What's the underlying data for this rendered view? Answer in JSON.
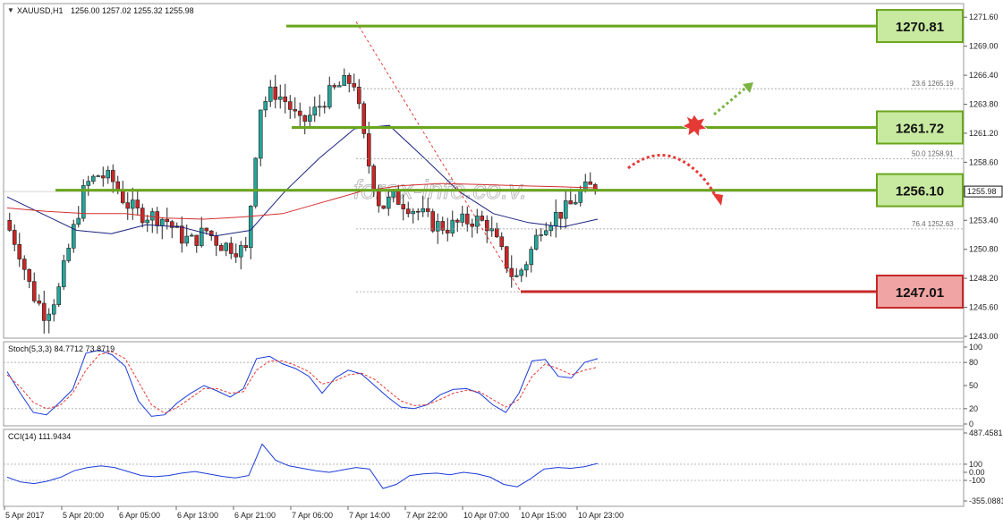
{
  "header": {
    "symbol": "XAUUSD,H1",
    "ohlc": "1256.00 1257.02 1255.32 1255.98"
  },
  "watermark": "forex-info.co.v.",
  "price_axis": {
    "ticks": [
      "1271.60",
      "1269.00",
      "1266.40",
      "1263.80",
      "1261.20",
      "1258.60",
      "1256.00",
      "1253.40",
      "1250.80",
      "1248.20",
      "1245.60",
      "1243.00"
    ],
    "current": "1255.98"
  },
  "time_axis": [
    "5 Apr 2017",
    "5 Apr 20:00",
    "6 Apr 05:00",
    "6 Apr 13:00",
    "6 Apr 21:00",
    "7 Apr 06:00",
    "7 Apr 14:00",
    "7 Apr 22:00",
    "10 Apr 07:00",
    "10 Apr 15:00",
    "10 Apr 23:00"
  ],
  "levels": [
    {
      "label": "1270.81",
      "price": 1270.81,
      "kind": "resistance"
    },
    {
      "label": "1261.72",
      "price": 1261.72,
      "kind": "resistance"
    },
    {
      "label": "1256.10",
      "price": 1256.1,
      "kind": "pivot"
    },
    {
      "label": "1247.01",
      "price": 1247.01,
      "kind": "support"
    }
  ],
  "fib_levels": [
    {
      "label": "23.6  1265.19",
      "price": 1265.19
    },
    {
      "label": "50.0  1258.91",
      "price": 1258.91
    },
    {
      "label": "76.4  1252.63",
      "price": 1252.63
    }
  ],
  "stoch": {
    "label": "Stoch(5,3,3) 84.7712 73.8719",
    "ticks": [
      "100",
      "80",
      "50",
      "20",
      "0"
    ]
  },
  "cci": {
    "label": "CCI(14) 111.9434",
    "ticks": [
      "487.4581",
      "100",
      "0.00",
      "-100",
      "-355.0881"
    ]
  },
  "colors": {
    "bull": "#26a69a",
    "bear": "#c62828",
    "ma_fast": "#1a237e",
    "ma_slow": "#d32f2f",
    "level_green": "#6aa51e",
    "level_red": "#c62828",
    "box_green": "#c8eaa0",
    "box_red": "#f0a4a4"
  },
  "chart_data": {
    "type": "candlestick",
    "symbol": "XAUUSD",
    "timeframe": "H1",
    "ylim": [
      1243.0,
      1272.5
    ],
    "close_path": [
      1253.4,
      1251.0,
      1247.0,
      1245.0,
      1247.0,
      1252.0,
      1256.5,
      1257.5,
      1257.0,
      1255.0,
      1254.0,
      1253.8,
      1253.5,
      1252.0,
      1251.5,
      1252.5,
      1251.3,
      1251.0,
      1250.6,
      1263.5,
      1265.0,
      1264.0,
      1262.0,
      1263.0,
      1264.5,
      1265.5,
      1266.0,
      1259.0,
      1254.5,
      1255.5,
      1254.8,
      1254.0,
      1253.0,
      1252.8,
      1253.2,
      1253.5,
      1253.0,
      1250.5,
      1248.0,
      1250.0,
      1253.0,
      1253.8,
      1254.5,
      1256.0,
      1256.5
    ],
    "ma_fast_path": [
      1255.5,
      1254.0,
      1252.5,
      1252.2,
      1253.0,
      1252.8,
      1252.0,
      1252.5,
      1256.0,
      1259.0,
      1261.6,
      1261.9,
      1259.0,
      1256.0,
      1254.0,
      1253.2,
      1252.8,
      1253.5
    ],
    "ma_slow_path": [
      1254.5,
      1254.2,
      1254.0,
      1254.0,
      1253.6,
      1253.5,
      1253.7,
      1254.0,
      1255.0,
      1256.0,
      1256.5,
      1256.7,
      1256.6,
      1256.5,
      1256.4,
      1256.3
    ],
    "stoch_main": [
      68,
      40,
      15,
      12,
      28,
      45,
      92,
      96,
      90,
      75,
      30,
      10,
      12,
      28,
      40,
      50,
      43,
      35,
      46,
      85,
      88,
      78,
      72,
      62,
      40,
      60,
      70,
      65,
      50,
      35,
      22,
      20,
      25,
      38,
      45,
      46,
      40,
      25,
      15,
      40,
      82,
      84,
      62,
      60,
      80,
      85
    ],
    "stoch_signal": [
      64,
      48,
      28,
      20,
      24,
      40,
      70,
      90,
      94,
      85,
      55,
      25,
      14,
      22,
      34,
      46,
      46,
      40,
      42,
      70,
      82,
      82,
      76,
      68,
      52,
      56,
      64,
      66,
      58,
      44,
      30,
      24,
      25,
      32,
      40,
      44,
      42,
      32,
      22,
      32,
      62,
      78,
      72,
      64,
      70,
      74
    ],
    "cci": [
      -60,
      -120,
      -140,
      -110,
      -60,
      20,
      60,
      80,
      60,
      10,
      -40,
      -55,
      -40,
      -10,
      10,
      -20,
      -50,
      -70,
      -40,
      350,
      150,
      80,
      50,
      20,
      0,
      30,
      60,
      40,
      -200,
      -150,
      -40,
      -20,
      -10,
      -30,
      0,
      -20,
      -60,
      -150,
      -180,
      -80,
      40,
      60,
      50,
      70,
      110
    ]
  }
}
